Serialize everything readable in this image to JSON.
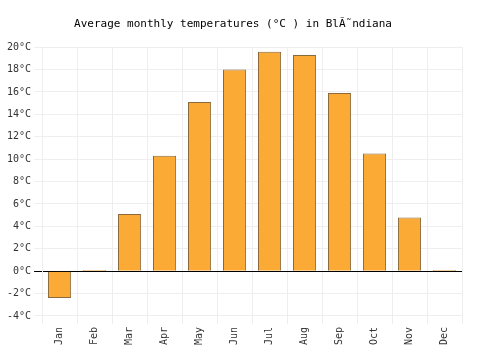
{
  "chart_data": {
    "type": "bar",
    "title": "Average monthly temperatures (°C ) in BlÃ˜ndiana",
    "categories": [
      "Jan",
      "Feb",
      "Mar",
      "Apr",
      "May",
      "Jun",
      "Jul",
      "Aug",
      "Sep",
      "Oct",
      "Nov",
      "Dec"
    ],
    "values": [
      -2.4,
      0.1,
      5.1,
      10.3,
      15.1,
      18.0,
      19.6,
      19.3,
      15.9,
      10.5,
      4.8,
      0.1
    ],
    "color": "#fbaa35",
    "ylim": [
      -4,
      20
    ],
    "yticks": [
      {
        "value": -4,
        "label": "-4°C"
      },
      {
        "value": -2,
        "label": "-2°C"
      },
      {
        "value": 0,
        "label": "0°C"
      },
      {
        "value": 2,
        "label": "2°C"
      },
      {
        "value": 4,
        "label": "4°C"
      },
      {
        "value": 6,
        "label": "6°C"
      },
      {
        "value": 8,
        "label": "8°C"
      },
      {
        "value": 10,
        "label": "10°C"
      },
      {
        "value": 12,
        "label": "12°C"
      },
      {
        "value": 14,
        "label": "14°C"
      },
      {
        "value": 16,
        "label": "16°C"
      },
      {
        "value": 18,
        "label": "18°C"
      },
      {
        "value": 20,
        "label": "20°C"
      }
    ],
    "grid": true
  }
}
